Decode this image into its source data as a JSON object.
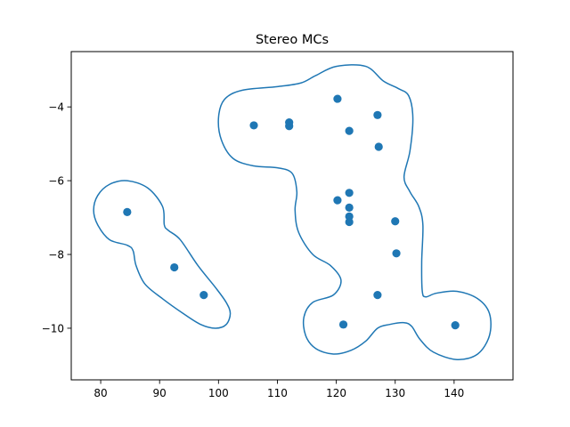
{
  "chart_data": {
    "type": "scatter",
    "title": "Stereo MCs",
    "xlabel": "",
    "ylabel": "",
    "xlim": [
      75,
      150
    ],
    "ylim": [
      -11.4,
      -2.5
    ],
    "x_ticks": [
      80,
      90,
      100,
      110,
      120,
      130,
      140
    ],
    "y_ticks": [
      -4,
      -6,
      -8,
      -10
    ],
    "x_tick_labels": [
      "80",
      "90",
      "100",
      "110",
      "120",
      "130",
      "140"
    ],
    "y_tick_labels": [
      "−4",
      "−6",
      "−8",
      "−10"
    ],
    "grid": false,
    "point_color": "#1f77b4",
    "contour_color": "#1f77b4",
    "points": [
      {
        "x": 84.5,
        "y": -6.85
      },
      {
        "x": 92.5,
        "y": -8.35
      },
      {
        "x": 97.5,
        "y": -9.1
      },
      {
        "x": 106,
        "y": -4.5
      },
      {
        "x": 112,
        "y": -4.42
      },
      {
        "x": 112,
        "y": -4.52
      },
      {
        "x": 120.2,
        "y": -3.78
      },
      {
        "x": 122.2,
        "y": -4.65
      },
      {
        "x": 127,
        "y": -4.22
      },
      {
        "x": 127.2,
        "y": -5.08
      },
      {
        "x": 122.2,
        "y": -6.33
      },
      {
        "x": 120.2,
        "y": -6.53
      },
      {
        "x": 122.2,
        "y": -6.73
      },
      {
        "x": 122.2,
        "y": -6.97
      },
      {
        "x": 122.2,
        "y": -7.12
      },
      {
        "x": 130,
        "y": -7.1
      },
      {
        "x": 130.2,
        "y": -7.97
      },
      {
        "x": 127,
        "y": -9.1
      },
      {
        "x": 121.2,
        "y": -9.9
      },
      {
        "x": 140.2,
        "y": -9.92
      }
    ],
    "contours": [
      [
        [
          84.5,
          -6.0
        ],
        [
          88,
          -6.2
        ],
        [
          90.5,
          -6.7
        ],
        [
          90.8,
          -7.2
        ],
        [
          91.5,
          -7.35
        ],
        [
          93.5,
          -7.6
        ],
        [
          96.5,
          -8.3
        ],
        [
          99.5,
          -8.9
        ],
        [
          101.3,
          -9.3
        ],
        [
          102,
          -9.6
        ],
        [
          101.3,
          -9.9
        ],
        [
          99.5,
          -10.0
        ],
        [
          97,
          -9.9
        ],
        [
          94,
          -9.6
        ],
        [
          90.5,
          -9.2
        ],
        [
          87.5,
          -8.8
        ],
        [
          86,
          -8.3
        ],
        [
          85.5,
          -7.9
        ],
        [
          84.5,
          -7.75
        ],
        [
          81.5,
          -7.6
        ],
        [
          79.5,
          -7.2
        ],
        [
          78.8,
          -6.8
        ],
        [
          79.5,
          -6.4
        ],
        [
          81.5,
          -6.1
        ],
        [
          84.5,
          -6.0
        ]
      ],
      [
        [
          125,
          -2.9
        ],
        [
          120,
          -2.9
        ],
        [
          116.5,
          -3.15
        ],
        [
          114,
          -3.35
        ],
        [
          110,
          -3.45
        ],
        [
          104,
          -3.55
        ],
        [
          101,
          -3.8
        ],
        [
          100,
          -4.3
        ],
        [
          100.5,
          -4.9
        ],
        [
          102.5,
          -5.4
        ],
        [
          106,
          -5.6
        ],
        [
          110,
          -5.65
        ],
        [
          112.5,
          -5.8
        ],
        [
          113.3,
          -6.3
        ],
        [
          113,
          -6.8
        ],
        [
          113.6,
          -7.4
        ],
        [
          116,
          -8.0
        ],
        [
          119,
          -8.3
        ],
        [
          120.8,
          -8.7
        ],
        [
          119.5,
          -9.1
        ],
        [
          116,
          -9.3
        ],
        [
          114.5,
          -9.7
        ],
        [
          114.8,
          -10.2
        ],
        [
          116.5,
          -10.55
        ],
        [
          119.5,
          -10.7
        ],
        [
          122.5,
          -10.6
        ],
        [
          125,
          -10.35
        ],
        [
          127,
          -10.0
        ],
        [
          129,
          -9.9
        ],
        [
          131.5,
          -9.85
        ],
        [
          132.8,
          -9.95
        ],
        [
          134.2,
          -10.3
        ],
        [
          136.5,
          -10.65
        ],
        [
          140.5,
          -10.85
        ],
        [
          144,
          -10.7
        ],
        [
          146,
          -10.2
        ],
        [
          146,
          -9.6
        ],
        [
          144,
          -9.2
        ],
        [
          140.5,
          -9.0
        ],
        [
          137,
          -9.05
        ],
        [
          135.2,
          -9.15
        ],
        [
          134.6,
          -9.0
        ],
        [
          134.5,
          -8.2
        ],
        [
          134.7,
          -7.2
        ],
        [
          134,
          -6.7
        ],
        [
          132.5,
          -6.3
        ],
        [
          131.5,
          -5.9
        ],
        [
          132.5,
          -5.2
        ],
        [
          133,
          -4.3
        ],
        [
          132.3,
          -3.7
        ],
        [
          130.5,
          -3.5
        ],
        [
          128,
          -3.3
        ],
        [
          125,
          -2.9
        ]
      ]
    ]
  }
}
